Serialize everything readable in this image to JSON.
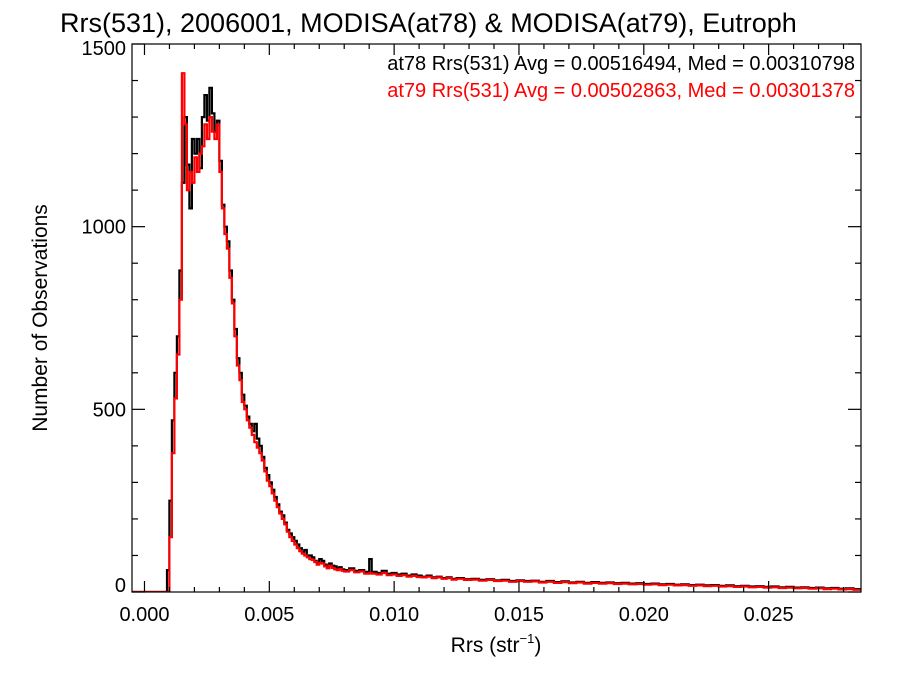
{
  "chart_data": {
    "type": "histogram",
    "title": "Rrs(531), 2006001, MODISA(at78) & MODISA(at79), Eutroph",
    "xlabel": "Rrs (str",
    "xlabel_sup": "−1",
    "xlabel_end": ")",
    "ylabel": "Number of Observations",
    "xlim": [
      -0.0005,
      0.0287
    ],
    "ylim": [
      0,
      1500
    ],
    "x_ticks": [
      0.0,
      0.005,
      0.01,
      0.015,
      0.02,
      0.025
    ],
    "x_tick_labels": [
      "0.000",
      "0.005",
      "0.010",
      "0.015",
      "0.020",
      "0.025"
    ],
    "y_ticks": [
      0,
      500,
      1000,
      1500
    ],
    "y_tick_labels": [
      "0",
      "500",
      "1000",
      "1500"
    ],
    "grid": false,
    "legend_position": "top-right",
    "series": [
      {
        "name": "at78 Rrs(531) Avg = 0.00516494, Med = 0.00310798",
        "color": "#000000",
        "points": [
          [
            -0.0005,
            0
          ],
          [
            0.0008,
            0
          ],
          [
            0.0009,
            60
          ],
          [
            0.001,
            250
          ],
          [
            0.0011,
            470
          ],
          [
            0.0012,
            600
          ],
          [
            0.0013,
            700
          ],
          [
            0.0014,
            880
          ],
          [
            0.0015,
            1120
          ],
          [
            0.0016,
            1300
          ],
          [
            0.0017,
            1170
          ],
          [
            0.0018,
            1050
          ],
          [
            0.0019,
            1240
          ],
          [
            0.002,
            1200
          ],
          [
            0.0021,
            1240
          ],
          [
            0.0022,
            1160
          ],
          [
            0.0023,
            1300
          ],
          [
            0.0024,
            1360
          ],
          [
            0.0025,
            1290
          ],
          [
            0.0026,
            1380
          ],
          [
            0.0027,
            1310
          ],
          [
            0.0028,
            1260
          ],
          [
            0.0029,
            1290
          ],
          [
            0.003,
            1180
          ],
          [
            0.0031,
            1060
          ],
          [
            0.0032,
            1000
          ],
          [
            0.0033,
            960
          ],
          [
            0.0034,
            880
          ],
          [
            0.0035,
            800
          ],
          [
            0.0036,
            720
          ],
          [
            0.0037,
            640
          ],
          [
            0.0038,
            600
          ],
          [
            0.0039,
            540
          ],
          [
            0.004,
            510
          ],
          [
            0.0041,
            480
          ],
          [
            0.0042,
            460
          ],
          [
            0.0043,
            440
          ],
          [
            0.0044,
            460
          ],
          [
            0.0045,
            420
          ],
          [
            0.0046,
            400
          ],
          [
            0.0047,
            370
          ],
          [
            0.0048,
            340
          ],
          [
            0.0049,
            320
          ],
          [
            0.005,
            300
          ],
          [
            0.0051,
            280
          ],
          [
            0.0052,
            260
          ],
          [
            0.0053,
            240
          ],
          [
            0.0054,
            220
          ],
          [
            0.0055,
            210
          ],
          [
            0.0056,
            190
          ],
          [
            0.0057,
            170
          ],
          [
            0.0058,
            160
          ],
          [
            0.0059,
            150
          ],
          [
            0.006,
            140
          ],
          [
            0.0061,
            130
          ],
          [
            0.0062,
            120
          ],
          [
            0.0063,
            110
          ],
          [
            0.0064,
            115
          ],
          [
            0.0065,
            100
          ],
          [
            0.0066,
            100
          ],
          [
            0.0067,
            95
          ],
          [
            0.0068,
            85
          ],
          [
            0.0069,
            80
          ],
          [
            0.007,
            90
          ],
          [
            0.0071,
            85
          ],
          [
            0.0072,
            75
          ],
          [
            0.0073,
            70
          ],
          [
            0.0074,
            78
          ],
          [
            0.0075,
            72
          ],
          [
            0.0076,
            70
          ],
          [
            0.0077,
            65
          ],
          [
            0.0078,
            68
          ],
          [
            0.0079,
            62
          ],
          [
            0.008,
            60
          ],
          [
            0.0082,
            65
          ],
          [
            0.0084,
            58
          ],
          [
            0.0086,
            60
          ],
          [
            0.0088,
            55
          ],
          [
            0.009,
            90
          ],
          [
            0.0091,
            55
          ],
          [
            0.0093,
            52
          ],
          [
            0.0095,
            58
          ],
          [
            0.0097,
            50
          ],
          [
            0.0099,
            52
          ],
          [
            0.0101,
            48
          ],
          [
            0.0103,
            50
          ],
          [
            0.0105,
            45
          ],
          [
            0.0107,
            48
          ],
          [
            0.0109,
            45
          ],
          [
            0.0111,
            42
          ],
          [
            0.0113,
            45
          ],
          [
            0.0115,
            40
          ],
          [
            0.0117,
            42
          ],
          [
            0.0119,
            38
          ],
          [
            0.0121,
            40
          ],
          [
            0.0123,
            36
          ],
          [
            0.0125,
            38
          ],
          [
            0.0128,
            35
          ],
          [
            0.0131,
            36
          ],
          [
            0.0134,
            33
          ],
          [
            0.0137,
            35
          ],
          [
            0.014,
            32
          ],
          [
            0.0143,
            33
          ],
          [
            0.0146,
            30
          ],
          [
            0.0149,
            32
          ],
          [
            0.0152,
            30
          ],
          [
            0.0155,
            31
          ],
          [
            0.0158,
            28
          ],
          [
            0.0161,
            30
          ],
          [
            0.0164,
            27
          ],
          [
            0.0167,
            29
          ],
          [
            0.017,
            26
          ],
          [
            0.0173,
            28
          ],
          [
            0.0176,
            25
          ],
          [
            0.0179,
            27
          ],
          [
            0.0182,
            25
          ],
          [
            0.0185,
            26
          ],
          [
            0.0188,
            24
          ],
          [
            0.0191,
            25
          ],
          [
            0.0194,
            23
          ],
          [
            0.0197,
            24
          ],
          [
            0.02,
            22
          ],
          [
            0.0203,
            23
          ],
          [
            0.0206,
            21
          ],
          [
            0.0209,
            22
          ],
          [
            0.0212,
            20
          ],
          [
            0.0215,
            21
          ],
          [
            0.0218,
            19
          ],
          [
            0.0221,
            20
          ],
          [
            0.0224,
            18
          ],
          [
            0.0227,
            19
          ],
          [
            0.023,
            17
          ],
          [
            0.0233,
            18
          ],
          [
            0.0236,
            16
          ],
          [
            0.0239,
            17
          ],
          [
            0.0242,
            15
          ],
          [
            0.0245,
            16
          ],
          [
            0.0248,
            14
          ],
          [
            0.0251,
            15
          ],
          [
            0.0254,
            13
          ],
          [
            0.0257,
            14
          ],
          [
            0.026,
            12
          ],
          [
            0.0263,
            13
          ],
          [
            0.0266,
            11
          ],
          [
            0.0269,
            12
          ],
          [
            0.0272,
            10
          ],
          [
            0.0275,
            11
          ],
          [
            0.0278,
            9
          ],
          [
            0.0281,
            10
          ],
          [
            0.0284,
            8
          ],
          [
            0.0287,
            8
          ]
        ]
      },
      {
        "name": "at79 Rrs(531) Avg = 0.00502863, Med = 0.00301378",
        "color": "#ff0000",
        "points": [
          [
            -0.0005,
            0
          ],
          [
            0.0009,
            0
          ],
          [
            0.001,
            150
          ],
          [
            0.0011,
            380
          ],
          [
            0.0012,
            530
          ],
          [
            0.0013,
            650
          ],
          [
            0.0014,
            800
          ],
          [
            0.0015,
            1420
          ],
          [
            0.0016,
            1280
          ],
          [
            0.0017,
            1100
          ],
          [
            0.0018,
            1150
          ],
          [
            0.0019,
            1120
          ],
          [
            0.002,
            1190
          ],
          [
            0.0021,
            1150
          ],
          [
            0.0022,
            1200
          ],
          [
            0.0023,
            1220
          ],
          [
            0.0024,
            1280
          ],
          [
            0.0025,
            1240
          ],
          [
            0.0026,
            1300
          ],
          [
            0.0027,
            1260
          ],
          [
            0.0028,
            1240
          ],
          [
            0.0029,
            1280
          ],
          [
            0.003,
            1150
          ],
          [
            0.0031,
            1050
          ],
          [
            0.0032,
            980
          ],
          [
            0.0033,
            940
          ],
          [
            0.0034,
            860
          ],
          [
            0.0035,
            790
          ],
          [
            0.0036,
            700
          ],
          [
            0.0037,
            620
          ],
          [
            0.0038,
            580
          ],
          [
            0.0039,
            520
          ],
          [
            0.004,
            500
          ],
          [
            0.0041,
            470
          ],
          [
            0.0042,
            450
          ],
          [
            0.0043,
            430
          ],
          [
            0.0044,
            410
          ],
          [
            0.0045,
            395
          ],
          [
            0.0046,
            380
          ],
          [
            0.0047,
            360
          ],
          [
            0.0048,
            330
          ],
          [
            0.0049,
            305
          ],
          [
            0.005,
            290
          ],
          [
            0.0051,
            270
          ],
          [
            0.0052,
            250
          ],
          [
            0.0053,
            232
          ],
          [
            0.0054,
            215
          ],
          [
            0.0055,
            200
          ],
          [
            0.0056,
            185
          ],
          [
            0.0057,
            165
          ],
          [
            0.0058,
            150
          ],
          [
            0.0059,
            140
          ],
          [
            0.006,
            130
          ],
          [
            0.0061,
            120
          ],
          [
            0.0062,
            112
          ],
          [
            0.0063,
            105
          ],
          [
            0.0064,
            100
          ],
          [
            0.0065,
            95
          ],
          [
            0.0066,
            90
          ],
          [
            0.0067,
            88
          ],
          [
            0.0068,
            82
          ],
          [
            0.0069,
            75
          ],
          [
            0.007,
            80
          ],
          [
            0.0071,
            78
          ],
          [
            0.0072,
            70
          ],
          [
            0.0073,
            65
          ],
          [
            0.0074,
            72
          ],
          [
            0.0075,
            66
          ],
          [
            0.0076,
            62
          ],
          [
            0.0077,
            60
          ],
          [
            0.0078,
            63
          ],
          [
            0.0079,
            58
          ],
          [
            0.008,
            56
          ],
          [
            0.0082,
            60
          ],
          [
            0.0084,
            54
          ],
          [
            0.0086,
            56
          ],
          [
            0.0088,
            50
          ],
          [
            0.009,
            52
          ],
          [
            0.0091,
            50
          ],
          [
            0.0093,
            48
          ],
          [
            0.0095,
            52
          ],
          [
            0.0097,
            46
          ],
          [
            0.0099,
            48
          ],
          [
            0.0101,
            44
          ],
          [
            0.0103,
            46
          ],
          [
            0.0105,
            42
          ],
          [
            0.0107,
            44
          ],
          [
            0.0109,
            41
          ],
          [
            0.0111,
            40
          ],
          [
            0.0113,
            42
          ],
          [
            0.0115,
            38
          ],
          [
            0.0117,
            40
          ],
          [
            0.0119,
            36
          ],
          [
            0.0121,
            38
          ],
          [
            0.0123,
            34
          ],
          [
            0.0125,
            36
          ],
          [
            0.0128,
            33
          ],
          [
            0.0131,
            34
          ],
          [
            0.0134,
            31
          ],
          [
            0.0137,
            33
          ],
          [
            0.014,
            30
          ],
          [
            0.0143,
            31
          ],
          [
            0.0146,
            28
          ],
          [
            0.0149,
            30
          ],
          [
            0.0152,
            28
          ],
          [
            0.0155,
            29
          ],
          [
            0.0158,
            26
          ],
          [
            0.0161,
            28
          ],
          [
            0.0164,
            25
          ],
          [
            0.0167,
            27
          ],
          [
            0.017,
            24
          ],
          [
            0.0173,
            26
          ],
          [
            0.0176,
            23
          ],
          [
            0.0179,
            25
          ],
          [
            0.0182,
            23
          ],
          [
            0.0185,
            24
          ],
          [
            0.0188,
            22
          ],
          [
            0.0191,
            23
          ],
          [
            0.0194,
            21
          ],
          [
            0.0197,
            22
          ],
          [
            0.02,
            20
          ],
          [
            0.0203,
            21
          ],
          [
            0.0206,
            19
          ],
          [
            0.0209,
            20
          ],
          [
            0.0212,
            18
          ],
          [
            0.0215,
            19
          ],
          [
            0.0218,
            17
          ],
          [
            0.0221,
            18
          ],
          [
            0.0224,
            16
          ],
          [
            0.0227,
            17
          ],
          [
            0.023,
            15
          ],
          [
            0.0233,
            16
          ],
          [
            0.0236,
            14
          ],
          [
            0.0239,
            15
          ],
          [
            0.0242,
            13
          ],
          [
            0.0245,
            14
          ],
          [
            0.0248,
            12
          ],
          [
            0.0251,
            13
          ],
          [
            0.0254,
            11
          ],
          [
            0.0257,
            12
          ],
          [
            0.026,
            10
          ],
          [
            0.0263,
            11
          ],
          [
            0.0266,
            9
          ],
          [
            0.0269,
            10
          ],
          [
            0.0272,
            8
          ],
          [
            0.0275,
            9
          ],
          [
            0.0278,
            7
          ],
          [
            0.0281,
            8
          ],
          [
            0.0284,
            6
          ],
          [
            0.0287,
            6
          ]
        ]
      }
    ]
  }
}
